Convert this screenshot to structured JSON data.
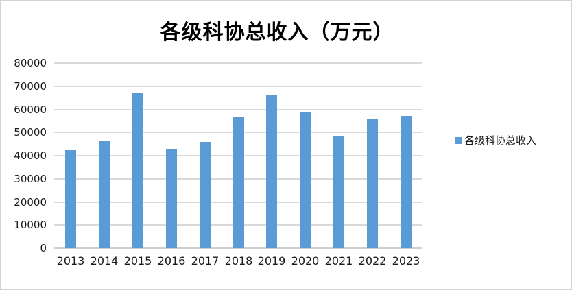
{
  "title": "各级科协总收入（万元）",
  "legend": {
    "label": "各级科协总收入",
    "swatch_color": "#5b9bd5"
  },
  "colors": {
    "bar": "#5b9bd5",
    "gridline": "#d9d9d9",
    "axis_text": "#1a1a1a",
    "frame_border": "#d2d2d2",
    "background": "#ffffff"
  },
  "chart_data": {
    "type": "bar",
    "title": "各级科协总收入（万元）",
    "series_name": "各级科协总收入",
    "categories": [
      "2013",
      "2014",
      "2015",
      "2016",
      "2017",
      "2018",
      "2019",
      "2020",
      "2021",
      "2022",
      "2023"
    ],
    "values": [
      42400,
      46600,
      67300,
      43000,
      45900,
      57000,
      66100,
      58700,
      48300,
      55600,
      57100
    ],
    "xlabel": "",
    "ylabel": "",
    "ylim": [
      0,
      80000
    ],
    "ytick_interval": 10000,
    "yticks": [
      "80000",
      "70000",
      "60000",
      "50000",
      "40000",
      "30000",
      "20000",
      "10000",
      "0"
    ],
    "grid": true,
    "legend_position": "right",
    "bar_color": "#5b9bd5"
  }
}
